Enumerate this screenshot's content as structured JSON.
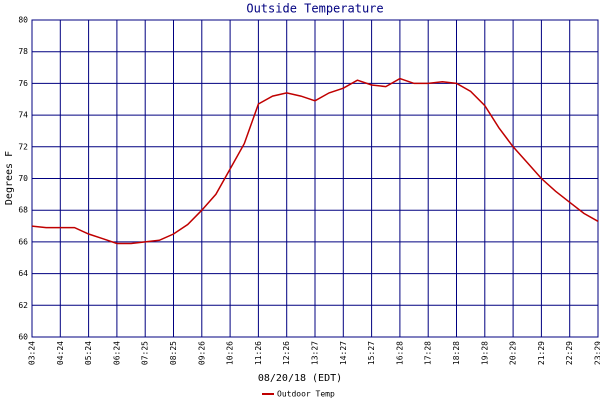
{
  "chart_data": {
    "type": "line",
    "title": "Outside Temperature",
    "x_label": "08/20/18 (EDT)",
    "y_label": "Degrees F",
    "categories": [
      "03:24",
      null,
      "04:24",
      null,
      "05:24",
      null,
      "06:24",
      null,
      "07:25",
      null,
      "08:25",
      null,
      "09:26",
      null,
      "10:26",
      null,
      "11:26",
      null,
      "12:26",
      null,
      "13:27",
      null,
      "14:27",
      null,
      "15:27",
      null,
      "16:28",
      null,
      "17:28",
      null,
      "18:28",
      null,
      "19:28",
      null,
      "20:29",
      null,
      "21:29",
      null,
      "22:29",
      null,
      "23:29"
    ],
    "series": [
      {
        "name": "Outdoor Temp",
        "color": "#c00000",
        "values": [
          67.0,
          66.9,
          66.9,
          66.9,
          66.5,
          66.2,
          65.9,
          65.9,
          66.0,
          66.1,
          66.5,
          67.1,
          68.0,
          69.0,
          70.6,
          72.2,
          74.7,
          75.2,
          75.4,
          75.2,
          74.9,
          75.4,
          75.7,
          76.2,
          75.9,
          75.8,
          76.3,
          76.0,
          76.0,
          76.1,
          76.0,
          75.5,
          74.6,
          73.2,
          72.0,
          71.0,
          70.0,
          69.2,
          68.5,
          67.8,
          67.3
        ]
      }
    ],
    "ylim": [
      60,
      80
    ],
    "yticks": [
      60,
      62,
      64,
      66,
      68,
      70,
      72,
      74,
      76,
      78,
      80
    ],
    "grid": true,
    "grid_color": "#000080"
  }
}
